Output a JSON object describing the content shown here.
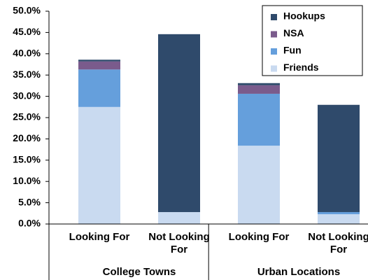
{
  "chart_data": {
    "type": "stacked_bar",
    "categories": [
      "Looking For",
      "Not Looking For",
      "Looking For",
      "Not Looking For"
    ],
    "groups": [
      "College Towns",
      "Urban Locations"
    ],
    "series": [
      {
        "name": "Friends",
        "color": "#c9daf0",
        "values": [
          27.5,
          2.8,
          18.4,
          2.3
        ]
      },
      {
        "name": "Fun",
        "color": "#659fdc",
        "values": [
          8.8,
          0,
          12.2,
          0.5
        ]
      },
      {
        "name": "NSA",
        "color": "#7a5b8c",
        "values": [
          1.9,
          0,
          2.0,
          0
        ]
      },
      {
        "name": "Hookups",
        "color": "#2f4a6b",
        "values": [
          0.4,
          41.8,
          0.5,
          25.2
        ]
      }
    ],
    "ylim": [
      0,
      50
    ],
    "yticks": [
      {
        "value": 0,
        "label": "0.0%"
      },
      {
        "value": 5,
        "label": "5.0%"
      },
      {
        "value": 10,
        "label": "10.0%"
      },
      {
        "value": 15,
        "label": "15.0%"
      },
      {
        "value": 20,
        "label": "20.0%"
      },
      {
        "value": 25,
        "label": "25.0%"
      },
      {
        "value": 30,
        "label": "30.0%"
      },
      {
        "value": 35,
        "label": "35.0%"
      },
      {
        "value": 40,
        "label": "40.0%"
      },
      {
        "value": 45,
        "label": "45.0%"
      },
      {
        "value": 50,
        "label": "50.0%"
      }
    ],
    "legend": "upper right",
    "grid": false
  }
}
